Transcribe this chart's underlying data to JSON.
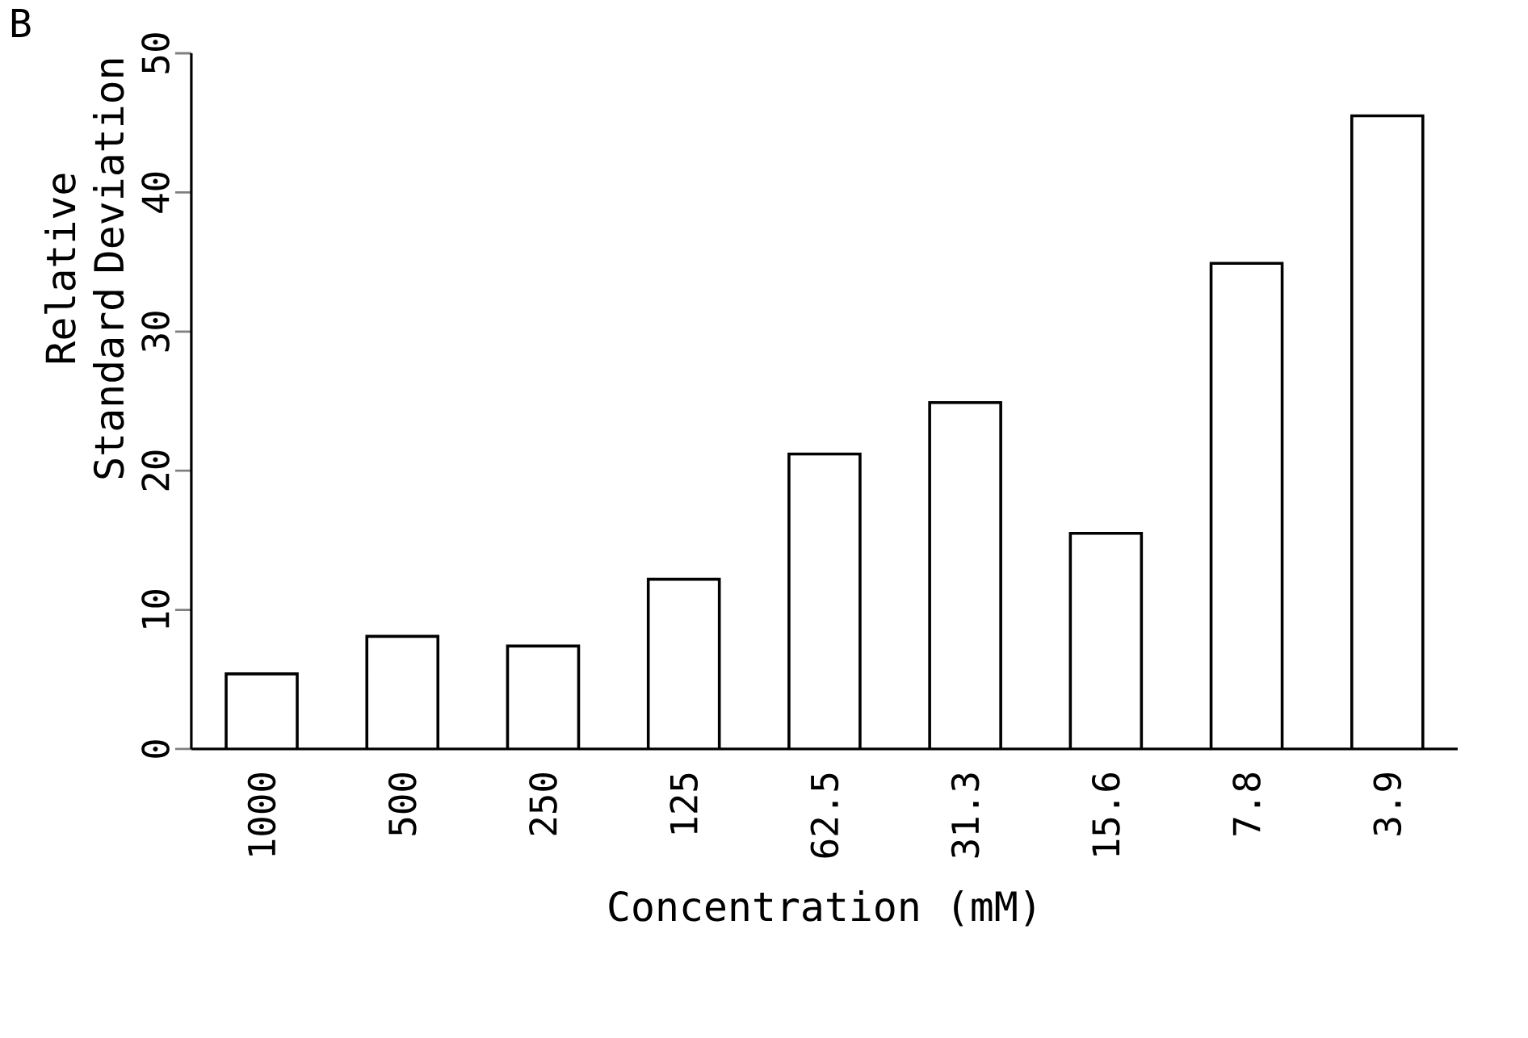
{
  "chart_data": {
    "type": "bar",
    "categories": [
      "1000",
      "500",
      "250",
      "125",
      "62.5",
      "31.3",
      "15.6",
      "7.8",
      "3.9"
    ],
    "values": [
      5.4,
      8.1,
      7.4,
      12.2,
      21.2,
      24.9,
      15.5,
      34.9,
      45.5
    ],
    "color": "#ffffff",
    "xlabel": "Concentration (mM)",
    "ylabel": "Relative Standard Deviation",
    "ylim": [
      0,
      50
    ],
    "yticks": [
      0,
      10,
      20,
      30,
      40,
      50
    ],
    "annotations": [
      "B"
    ]
  }
}
